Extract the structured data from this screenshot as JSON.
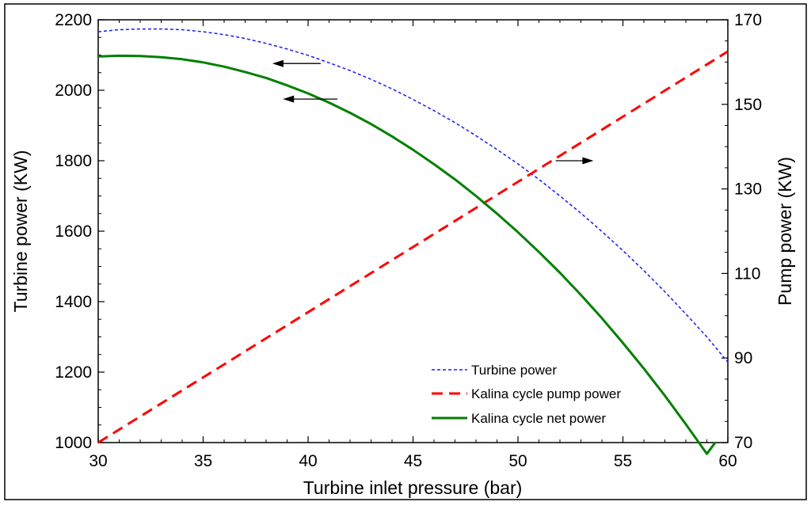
{
  "chart_data": {
    "type": "line",
    "xlabel": "Turbine inlet pressure (bar)",
    "ylabel": "Turbine power (KW)",
    "y2label": "Pump power (KW)",
    "xlim": [
      30,
      60
    ],
    "ylim": [
      1000,
      2200
    ],
    "y2lim": [
      70,
      170
    ],
    "xticks": [
      30,
      35,
      40,
      45,
      50,
      55,
      60
    ],
    "yticks": [
      1000,
      1200,
      1400,
      1600,
      1800,
      2000,
      2200
    ],
    "y2ticks": [
      70,
      90,
      110,
      130,
      150,
      170
    ],
    "grid": false,
    "legend_position": "bottom-right",
    "series": [
      {
        "name": "Turbine power",
        "axis": "left",
        "color": "#1a1aff",
        "style": "dotted",
        "x": [
          30,
          31,
          32,
          33,
          34,
          35,
          36,
          37,
          38,
          39,
          40,
          41,
          42,
          43,
          44,
          45,
          46,
          47,
          48,
          49,
          50,
          51,
          52,
          53,
          54,
          55,
          56,
          57,
          58,
          59,
          60
        ],
        "y": [
          2166,
          2172,
          2174,
          2174,
          2172,
          2166,
          2158,
          2147,
          2133,
          2117,
          2099,
          2078,
          2056,
          2031,
          2004,
          1974,
          1942,
          1908,
          1871,
          1832,
          1791,
          1747,
          1700,
          1651,
          1599,
          1545,
          1488,
          1428,
          1365,
          1300,
          1228
        ]
      },
      {
        "name": "Kalina cycle pump power",
        "axis": "right",
        "color": "#ff0000",
        "style": "dashed",
        "x": [
          30,
          60
        ],
        "y": [
          70,
          162.5
        ]
      },
      {
        "name": "Kalina cycle net power",
        "axis": "left",
        "color": "#008000",
        "style": "solid",
        "x": [
          30,
          31,
          32,
          33,
          34,
          35,
          36,
          37,
          38,
          39,
          40,
          41,
          42,
          43,
          44,
          45,
          46,
          47,
          48,
          49,
          50,
          51,
          52,
          53,
          54,
          55,
          56,
          57,
          58,
          59,
          59.4
        ],
        "y": [
          2096,
          2098,
          2097,
          2094,
          2088,
          2079,
          2067,
          2052,
          2035,
          2014,
          1991,
          1965,
          1936,
          1904,
          1869,
          1831,
          1790,
          1747,
          1700,
          1650,
          1597,
          1541,
          1482,
          1419,
          1353,
          1283,
          1210,
          1133,
          1052,
          968,
          1000
        ]
      }
    ],
    "annotations": [
      {
        "type": "arrow",
        "points_to": "left",
        "series": "Turbine power",
        "at": [
          40.6,
          2076
        ],
        "to_x": 38.3
      },
      {
        "type": "arrow",
        "points_to": "left",
        "series": "Kalina cycle net power",
        "at": [
          41.4,
          1975
        ],
        "to_x": 38.8
      },
      {
        "type": "arrow",
        "points_to": "right",
        "series": "Kalina cycle pump power",
        "at": [
          51.8,
          1800
        ],
        "to_x": 53.6
      }
    ]
  }
}
